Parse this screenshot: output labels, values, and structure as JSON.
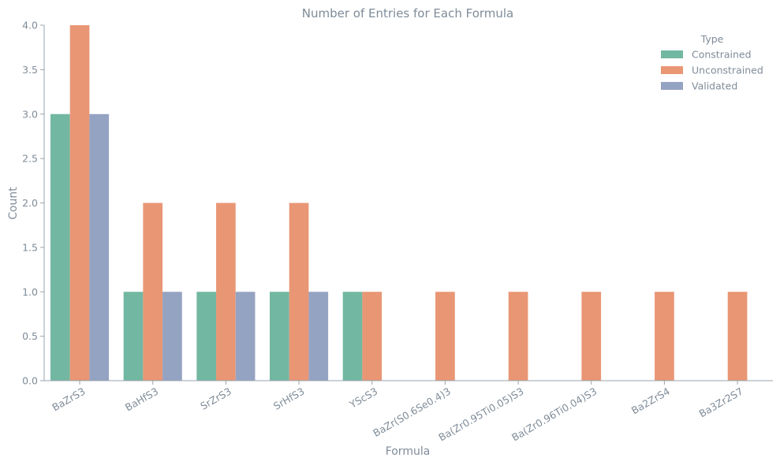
{
  "chart_data": {
    "type": "bar",
    "title": "Number of Entries for Each Formula",
    "xlabel": "Formula",
    "ylabel": "Count",
    "ylim": [
      0,
      4.0
    ],
    "yticks": [
      "0.0",
      "0.5",
      "1.0",
      "1.5",
      "2.0",
      "2.5",
      "3.0",
      "3.5",
      "4.0"
    ],
    "categories": [
      "BaZrS3",
      "BaHfS3",
      "SrZrS3",
      "SrHfS3",
      "YScS3",
      "BaZr(S0.6Se0.4)3",
      "Ba(Zr0.95Ti0.05)S3",
      "Ba(Zr0.96Ti0.04)S3",
      "Ba2ZrS4",
      "Ba3Zr2S7"
    ],
    "legend_title": "Type",
    "legend_position": "top-right",
    "grid": false,
    "series": [
      {
        "name": "Constrained",
        "color": "#72b7a1",
        "values": [
          3,
          1,
          1,
          1,
          1,
          0,
          0,
          0,
          0,
          0
        ]
      },
      {
        "name": "Unconstrained",
        "color": "#e99675",
        "values": [
          4,
          2,
          2,
          2,
          1,
          1,
          1,
          1,
          1,
          1
        ]
      },
      {
        "name": "Validated",
        "color": "#95a3c3",
        "values": [
          3,
          1,
          1,
          1,
          0,
          0,
          0,
          0,
          0,
          0
        ]
      }
    ]
  }
}
